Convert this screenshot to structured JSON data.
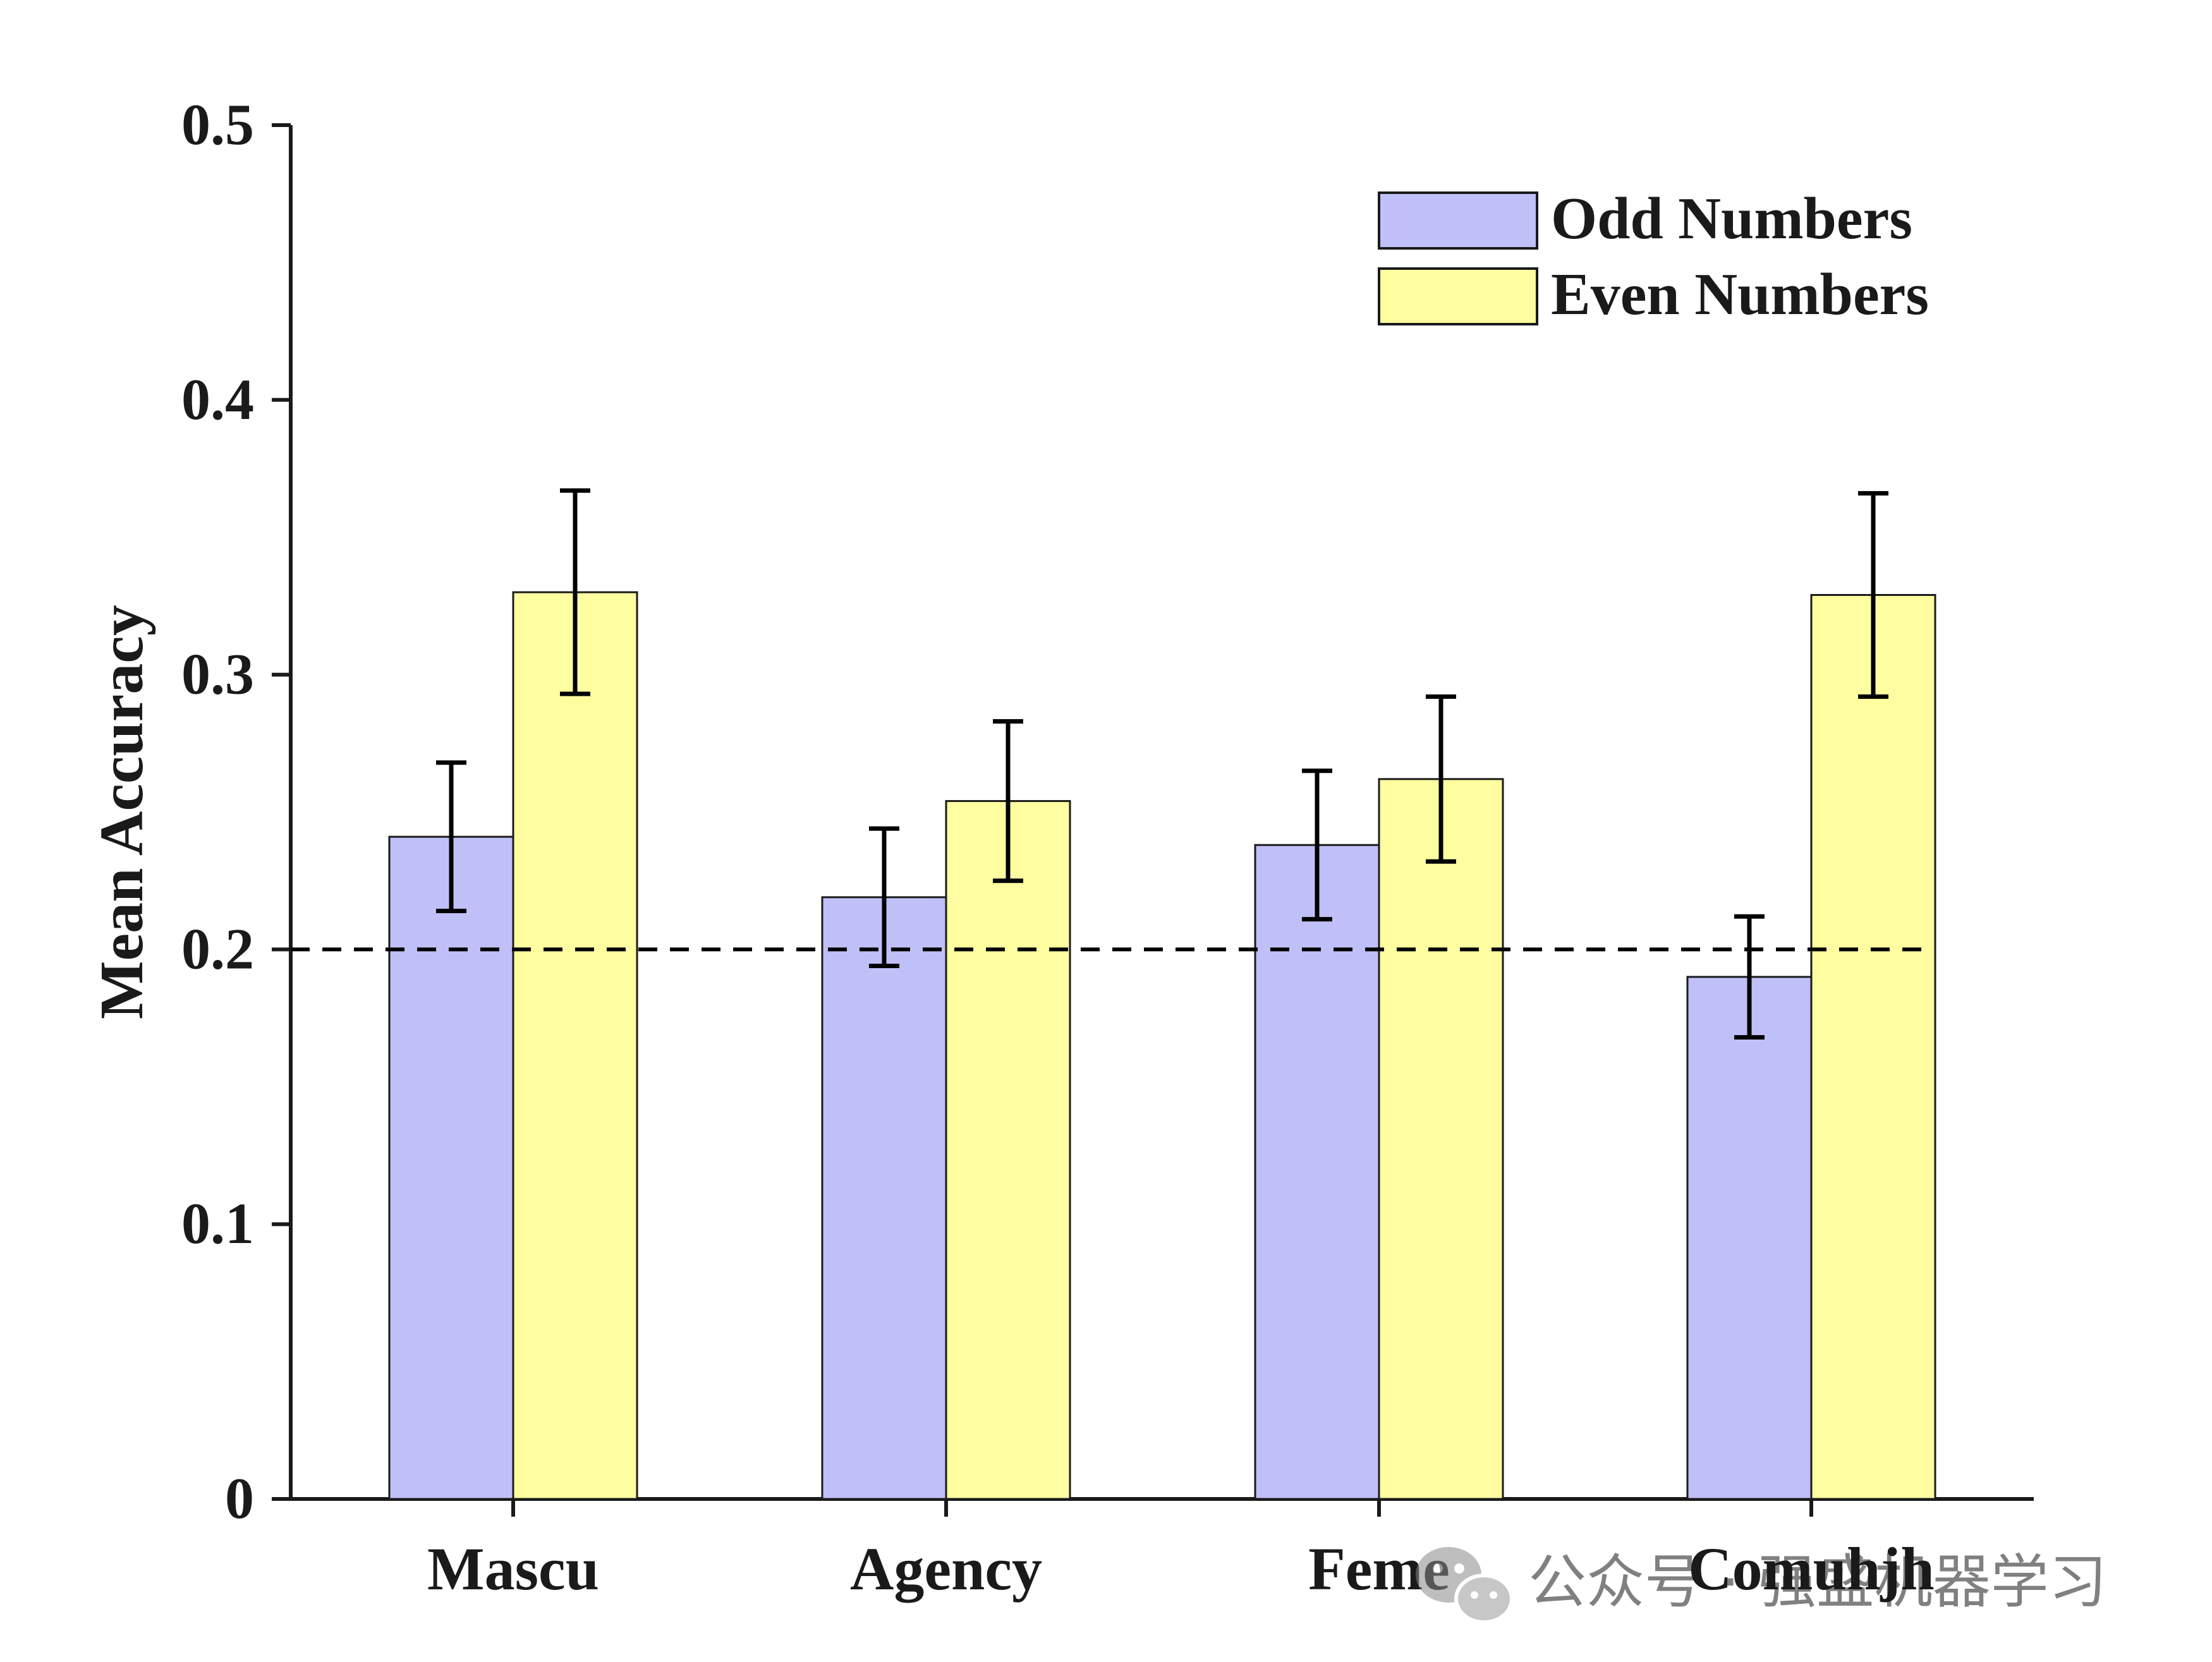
{
  "chart_data": {
    "type": "bar",
    "title": "",
    "xlabel": "",
    "ylabel": "Mean Accuracy",
    "ylim": [
      0,
      0.5
    ],
    "yticks": [
      "0",
      "0.1",
      "0.2",
      "0.3",
      "0.4",
      "0.5"
    ],
    "categories": [
      "Mascu",
      "Agency",
      "Feme",
      "Comuhjh"
    ],
    "series": [
      {
        "name": "Odd Numbers",
        "color": "#c0c0f8",
        "values": [
          0.241,
          0.219,
          0.238,
          0.19
        ],
        "error": [
          0.027,
          0.025,
          0.027,
          0.022
        ]
      },
      {
        "name": "Even Numbers",
        "color": "#fefea0",
        "values": [
          0.33,
          0.254,
          0.262,
          0.329
        ],
        "error": [
          0.037,
          0.029,
          0.03,
          0.037
        ]
      }
    ],
    "reference_line": {
      "value": 0.2,
      "style": "dashed"
    },
    "legend_position": "top-right",
    "grid": false
  },
  "watermark": {
    "text": "公众号 · 强盛机器学习",
    "icon": "wechat-icon"
  }
}
